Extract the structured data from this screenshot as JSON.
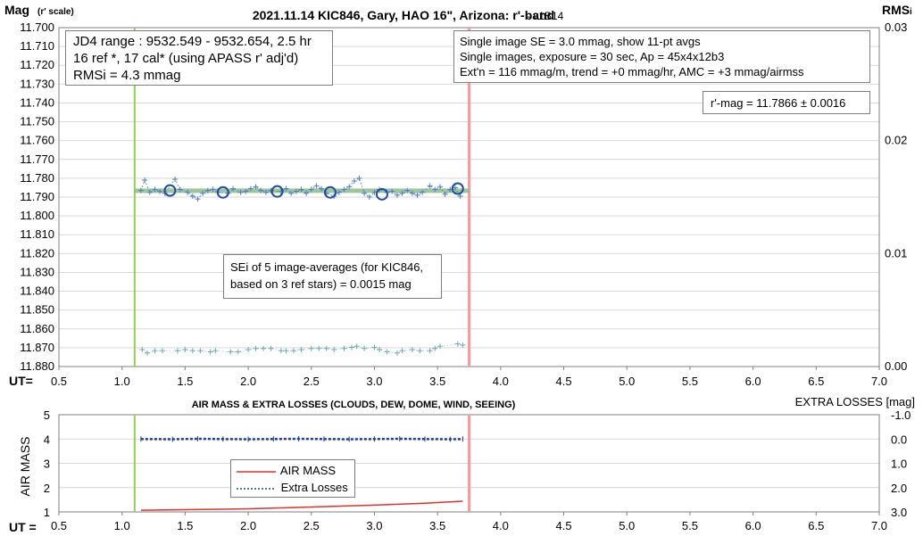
{
  "chart_data": [
    {
      "type": "scatter",
      "title": "2021.11.14 KIC846, Gary, HAO 16\", Arizona: r'-band",
      "version": "- v1B14",
      "ylabel": "Mag",
      "ylabel_sub": "(r' scale)",
      "y2label": "RMS",
      "y2label_sub": "i",
      "xlabel": "UT=",
      "xlim": [
        0.5,
        7.0
      ],
      "ylim": [
        11.88,
        11.7
      ],
      "y2lim": [
        0.0,
        0.03
      ],
      "x_ticks": [
        "0.5",
        "1.0",
        "1.5",
        "2.0",
        "2.5",
        "3.0",
        "3.5",
        "4.0",
        "4.5",
        "5.0",
        "5.5",
        "6.0",
        "6.5",
        "7.0"
      ],
      "y_ticks": [
        "11.700",
        "11.710",
        "11.720",
        "11.730",
        "11.740",
        "11.750",
        "11.760",
        "11.770",
        "11.780",
        "11.790",
        "11.800",
        "11.810",
        "11.820",
        "11.830",
        "11.840",
        "11.850",
        "11.860",
        "11.870",
        "11.880"
      ],
      "y2_ticks": [
        "0.03",
        "0.02",
        "0.01",
        "0.00"
      ],
      "jd_range_start_ut": 1.1,
      "jd_range_end_ut": 3.75,
      "fit_line": {
        "x": [
          1.1,
          3.75
        ],
        "y": [
          11.7866,
          11.7866
        ]
      },
      "averages": {
        "x": [
          1.38,
          1.8,
          2.23,
          2.65,
          3.06,
          3.66
        ],
        "y": [
          11.7865,
          11.7875,
          11.787,
          11.7875,
          11.7885,
          11.7855
        ]
      },
      "single_images": {
        "x": [
          1.15,
          1.18,
          1.22,
          1.26,
          1.3,
          1.34,
          1.42,
          1.46,
          1.52,
          1.56,
          1.6,
          1.64,
          1.68,
          1.72,
          1.76,
          1.84,
          1.88,
          1.94,
          1.98,
          2.02,
          2.06,
          2.1,
          2.14,
          2.18,
          2.26,
          2.3,
          2.34,
          2.38,
          2.42,
          2.46,
          2.5,
          2.54,
          2.58,
          2.62,
          2.68,
          2.72,
          2.76,
          2.8,
          2.84,
          2.88,
          2.92,
          2.96,
          3.0,
          3.04,
          3.1,
          3.14,
          3.18,
          3.22,
          3.26,
          3.3,
          3.34,
          3.38,
          3.44,
          3.48,
          3.52,
          3.56,
          3.6,
          3.64,
          3.68
        ],
        "y": [
          11.7865,
          11.781,
          11.7875,
          11.786,
          11.787,
          11.788,
          11.7805,
          11.786,
          11.7875,
          11.7895,
          11.791,
          11.788,
          11.7865,
          11.786,
          11.7875,
          11.788,
          11.7855,
          11.7875,
          11.787,
          11.7855,
          11.7845,
          11.7865,
          11.7875,
          11.7865,
          11.787,
          11.7855,
          11.788,
          11.787,
          11.786,
          11.788,
          11.786,
          11.784,
          11.7855,
          11.788,
          11.7895,
          11.7875,
          11.786,
          11.7845,
          11.7815,
          11.78,
          11.788,
          11.79,
          11.7875,
          11.786,
          11.7875,
          11.787,
          11.789,
          11.788,
          11.7865,
          11.788,
          11.789,
          11.7875,
          11.784,
          11.786,
          11.7845,
          11.7885,
          11.786,
          11.785,
          11.7895
        ]
      },
      "rms_points": {
        "x": [
          1.16,
          1.2,
          1.26,
          1.32,
          1.44,
          1.5,
          1.56,
          1.62,
          1.7,
          1.74,
          1.86,
          1.92,
          2.0,
          2.06,
          2.12,
          2.18,
          2.26,
          2.3,
          2.36,
          2.42,
          2.5,
          2.56,
          2.62,
          2.68,
          2.76,
          2.82,
          2.86,
          2.92,
          3.0,
          3.04,
          3.1,
          3.18,
          3.22,
          3.3,
          3.36,
          3.44,
          3.48,
          3.52,
          3.66,
          3.7
        ],
        "y": [
          0.0015,
          0.0012,
          0.0014,
          0.0014,
          0.0014,
          0.0015,
          0.0014,
          0.0014,
          0.0013,
          0.0014,
          0.0013,
          0.0013,
          0.0015,
          0.0016,
          0.0016,
          0.0016,
          0.0014,
          0.0014,
          0.0014,
          0.0015,
          0.0016,
          0.0016,
          0.0016,
          0.0015,
          0.0016,
          0.0017,
          0.0018,
          0.0016,
          0.0017,
          0.0015,
          0.0013,
          0.0012,
          0.0014,
          0.0015,
          0.0014,
          0.0014,
          0.0016,
          0.0018,
          0.002,
          0.0019
        ]
      },
      "annotations": {
        "info_box": [
          "JD4 range : 9532.549 - 9532.654,  2.5  hr",
          "16 ref *, 17 cal* (using APASS r' adj'd)",
          "RMSi = 4.3 mmag"
        ],
        "single_box": [
          "Single image SE = 3.0 mmag, show  11-pt avgs",
          "Single images, exposure = 30 sec, Ap = 45x4x12b3",
          "Ext'n = 116 mmag/m, trend = +0  mmag/hr, AMC = +3 mmag/airmss"
        ],
        "rmag_box": "r'-mag = 11.7866 ± 0.0016",
        "sei_box": [
          "SEi of 5 image-averages (for KIC846,",
          "based on 3 ref stars) = 0.0015 mag"
        ]
      },
      "colors": {
        "vertical_start": "#92d050",
        "vertical_end": "#ff9999",
        "fit_line": "#8fbc8f",
        "single": "#4f81bd",
        "averages": "#1f4e9c",
        "rms": "#6fa8b0"
      }
    },
    {
      "type": "line",
      "title": "AIR MASS & EXTRA LOSSES (CLOUDS, DEW, DOME, WIND, SEEING)",
      "ylabel": "AIR MASS",
      "y2label": "EXTRA LOSSES [mag]",
      "xlabel": "UT =",
      "xlim": [
        0.5,
        7.0
      ],
      "ylim": [
        1,
        5
      ],
      "y2lim": [
        3.0,
        -1.0
      ],
      "x_ticks": [
        "0.5",
        "1.0",
        "1.5",
        "2.0",
        "2.5",
        "3.0",
        "3.5",
        "4.0",
        "4.5",
        "5.0",
        "5.5",
        "6.0",
        "6.5",
        "7.0"
      ],
      "y_ticks": [
        "5",
        "4",
        "3",
        "2",
        "1"
      ],
      "y2_ticks": [
        "-1.0",
        "0.0",
        "1.0",
        "2.0",
        "3.0"
      ],
      "series": [
        {
          "name": "AIR MASS",
          "x": [
            1.15,
            1.5,
            2.0,
            2.5,
            3.0,
            3.4,
            3.7
          ],
          "y": [
            1.07,
            1.09,
            1.13,
            1.2,
            1.28,
            1.36,
            1.44
          ]
        },
        {
          "name": "Extra Losses",
          "x": [
            1.15,
            1.4,
            1.6,
            1.8,
            2.0,
            2.2,
            2.4,
            2.6,
            2.8,
            3.0,
            3.2,
            3.4,
            3.6,
            3.7
          ],
          "y": [
            0.0,
            0.01,
            -0.01,
            0.0,
            0.01,
            0.0,
            -0.01,
            0.0,
            0.01,
            0.0,
            -0.01,
            0.0,
            0.01,
            0.0
          ]
        }
      ],
      "jd_range_start_ut": 1.1,
      "jd_range_end_ut": 3.75,
      "legend_placement": "bottom-left"
    }
  ]
}
